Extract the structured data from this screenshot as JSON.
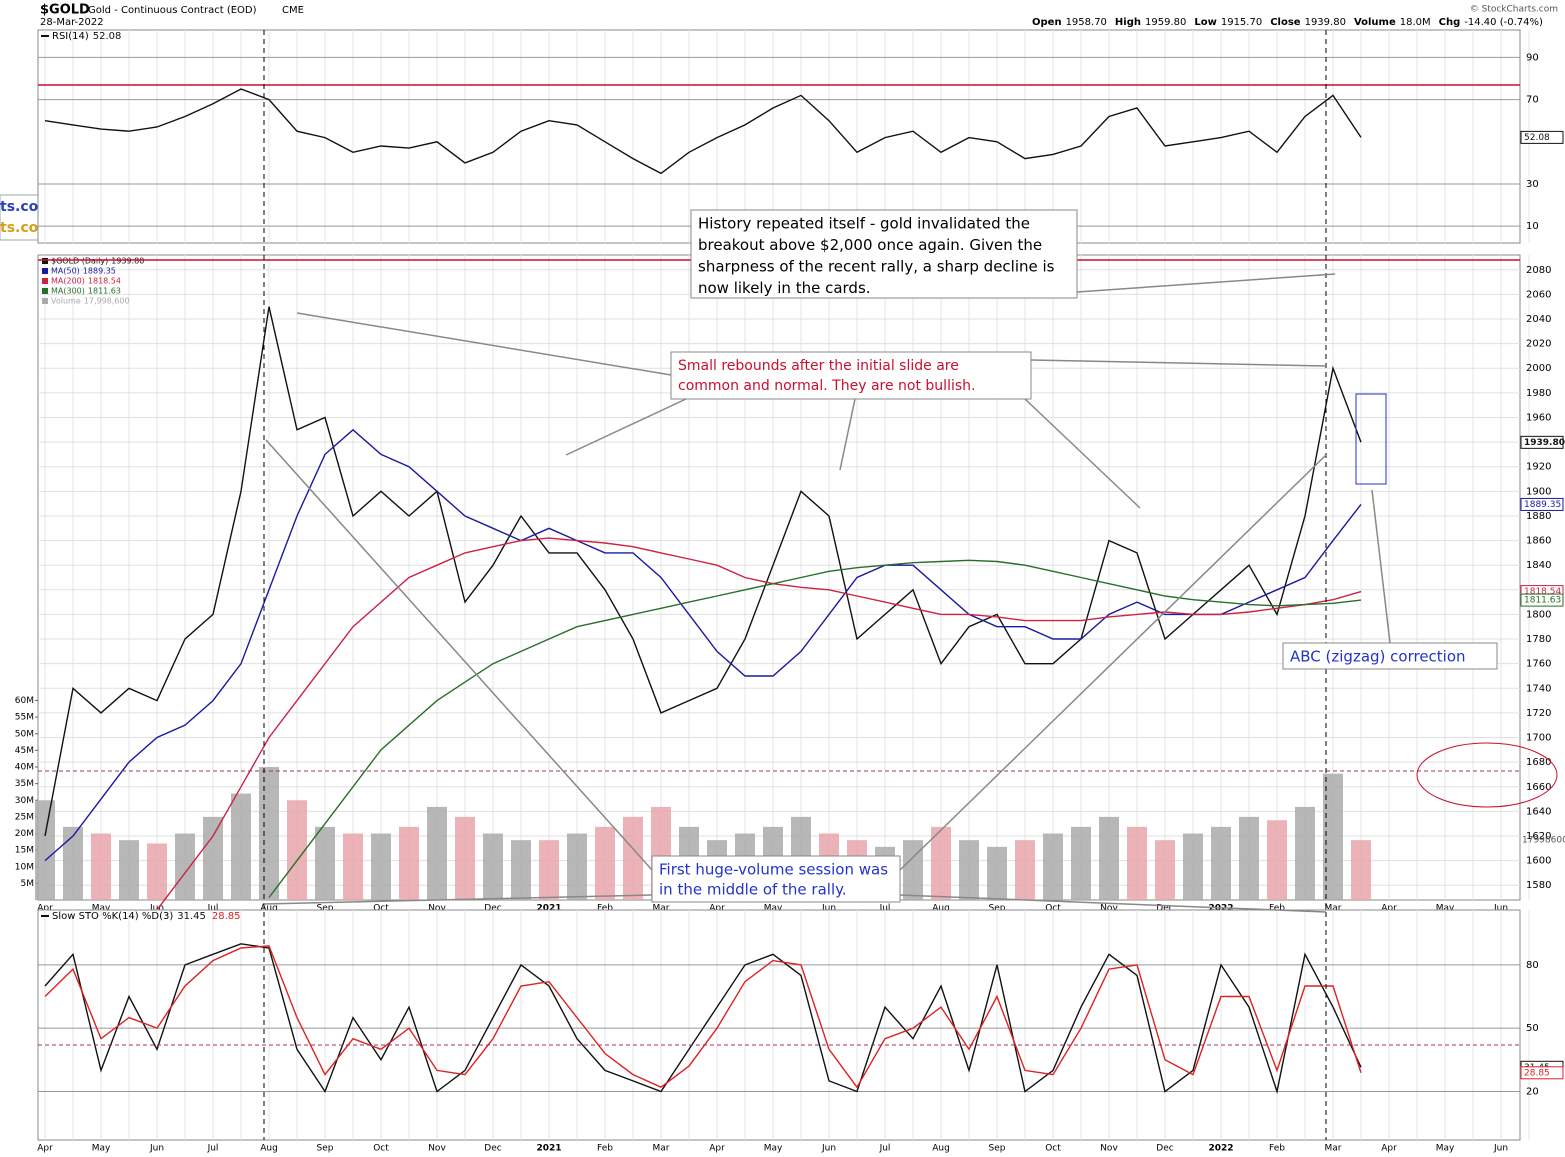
{
  "header": {
    "symbol": "$GOLD",
    "name": "Gold - Continuous Contract (EOD)",
    "exchange": "CME",
    "date": "28-Mar-2022",
    "quote": [
      [
        "Open",
        "1958.70"
      ],
      [
        "High",
        "1959.80"
      ],
      [
        "Low",
        "1915.70"
      ],
      [
        "Close",
        "1939.80"
      ],
      [
        "Volume",
        "18.0M"
      ],
      [
        "Chg",
        "-14.40 (-0.74%)"
      ]
    ],
    "credit": "© StockCharts.com",
    "logo": [
      "ts.com",
      "ts.com"
    ]
  },
  "chart_data": [
    {
      "type": "line",
      "title": "RSI(14)",
      "ylim": [
        2,
        103
      ],
      "yticks": [
        10,
        30,
        70,
        90
      ],
      "series": [
        {
          "name": "RSI(14)",
          "color": "#111111",
          "values": [
            60,
            58,
            56,
            55,
            57,
            62,
            68,
            75,
            70,
            55,
            52,
            45,
            48,
            47,
            50,
            40,
            45,
            55,
            60,
            58,
            50,
            42,
            35,
            45,
            52,
            58,
            66,
            72,
            60,
            45,
            52,
            55,
            45,
            52,
            50,
            42,
            44,
            48,
            62,
            66,
            48,
            50,
            52,
            55,
            45,
            62,
            72,
            52.08,
            null,
            null,
            null,
            null,
            null,
            null
          ]
        }
      ]
    },
    {
      "type": "line",
      "title": "$GOLD (Daily)",
      "categories": [
        "Apr",
        null,
        "May",
        null,
        "Jun",
        null,
        "Jul",
        null,
        "Aug",
        null,
        "Sep",
        null,
        "Oct",
        null,
        "Nov",
        null,
        "Dec",
        null,
        "2021",
        null,
        "Feb",
        null,
        "Mar",
        null,
        "Apr",
        null,
        "May",
        null,
        "Jun",
        null,
        "Jul",
        null,
        "Aug",
        null,
        "Sep",
        null,
        "Oct",
        null,
        "Nov",
        null,
        "Dec",
        null,
        "2022",
        null,
        "Feb",
        null,
        "Mar",
        null,
        "Apr",
        null,
        "May",
        null,
        "Jun",
        null
      ],
      "ylim": [
        1568,
        2092
      ],
      "yticks": [
        1580,
        1600,
        1620,
        1640,
        1660,
        1680,
        1700,
        1720,
        1740,
        1760,
        1780,
        1800,
        1820,
        1840,
        1860,
        1880,
        1900,
        1920,
        1940,
        1960,
        1980,
        2000,
        2020,
        2040,
        2060,
        2080
      ],
      "y2lim": [
        0,
        194000000
      ],
      "y2ticks": [
        {
          "value": 5000000,
          "label": "5M"
        },
        {
          "value": 10000000,
          "label": "10M"
        },
        {
          "value": 15000000,
          "label": "15M"
        },
        {
          "value": 20000000,
          "label": "20M"
        },
        {
          "value": 25000000,
          "label": "25M"
        },
        {
          "value": 30000000,
          "label": "30M"
        },
        {
          "value": 35000000,
          "label": "35M"
        },
        {
          "value": 40000000,
          "label": "40M"
        },
        {
          "value": 45000000,
          "label": "45M"
        },
        {
          "value": 50000000,
          "label": "50M"
        },
        {
          "value": 55000000,
          "label": "55M"
        },
        {
          "value": 60000000,
          "label": "60M"
        }
      ],
      "series": [
        {
          "name": "Volume",
          "type": "bar",
          "axis": "y2",
          "color": "#aaaaaa",
          "down_color": "#e8a4ac",
          "last_label": "17,998,600",
          "values": [
            30000000,
            22000000,
            20000000,
            18000000,
            17000000,
            20000000,
            25000000,
            32000000,
            40000000,
            30000000,
            22000000,
            20000000,
            20000000,
            22000000,
            28000000,
            25000000,
            20000000,
            18000000,
            18000000,
            20000000,
            22000000,
            25000000,
            28000000,
            22000000,
            18000000,
            20000000,
            22000000,
            25000000,
            20000000,
            18000000,
            16000000,
            18000000,
            22000000,
            18000000,
            16000000,
            18000000,
            20000000,
            22000000,
            25000000,
            22000000,
            18000000,
            20000000,
            22000000,
            25000000,
            24000000,
            28000000,
            38000000,
            17998600,
            null,
            null,
            null,
            null,
            null,
            null
          ]
        },
        {
          "name": "$GOLD (Daily)",
          "color": "#111111",
          "last_label": "1939.80",
          "values": [
            1620,
            1740,
            1720,
            1740,
            1730,
            1780,
            1800,
            1900,
            2050,
            1950,
            1960,
            1880,
            1900,
            1880,
            1900,
            1810,
            1840,
            1880,
            1850,
            1850,
            1820,
            1780,
            1720,
            1730,
            1740,
            1780,
            1840,
            1900,
            1880,
            1780,
            1800,
            1820,
            1760,
            1790,
            1800,
            1760,
            1760,
            1780,
            1860,
            1850,
            1780,
            1800,
            1820,
            1840,
            1800,
            1880,
            2000,
            1939.8,
            null,
            null,
            null,
            null,
            null,
            null
          ]
        },
        {
          "name": "MA(50)",
          "color": "#1a1aa0",
          "values": [
            1600,
            1620,
            1650,
            1680,
            1700,
            1710,
            1730,
            1760,
            1820,
            1880,
            1930,
            1950,
            1930,
            1920,
            1900,
            1880,
            1870,
            1860,
            1870,
            1860,
            1850,
            1850,
            1830,
            1800,
            1770,
            1750,
            1750,
            1770,
            1800,
            1830,
            1840,
            1840,
            1820,
            1800,
            1790,
            1790,
            1780,
            1780,
            1800,
            1810,
            1800,
            1800,
            1800,
            1810,
            1820,
            1830,
            1860,
            1889.35,
            null,
            null,
            null,
            null,
            null,
            null
          ]
        },
        {
          "name": "MA(200)",
          "color": "#cc2244",
          "values": [
            null,
            null,
            null,
            null,
            1560,
            1590,
            1620,
            1660,
            1700,
            1730,
            1760,
            1790,
            1810,
            1830,
            1840,
            1850,
            1855,
            1860,
            1862,
            1860,
            1858,
            1855,
            1850,
            1845,
            1840,
            1830,
            1825,
            1822,
            1820,
            1815,
            1810,
            1805,
            1800,
            1800,
            1798,
            1795,
            1795,
            1795,
            1798,
            1800,
            1802,
            1800,
            1800,
            1802,
            1805,
            1808,
            1812,
            1818.54,
            null,
            null,
            null,
            null,
            null,
            null
          ]
        },
        {
          "name": "MA(300)",
          "color": "#2a6e2a",
          "values": [
            null,
            null,
            null,
            null,
            null,
            null,
            null,
            null,
            1570,
            1600,
            1630,
            1660,
            1690,
            1710,
            1730,
            1745,
            1760,
            1770,
            1780,
            1790,
            1795,
            1800,
            1805,
            1810,
            1815,
            1820,
            1825,
            1830,
            1835,
            1838,
            1840,
            1842,
            1843,
            1844,
            1843,
            1840,
            1835,
            1830,
            1825,
            1820,
            1815,
            1812,
            1810,
            1808,
            1807,
            1808,
            1809,
            1811.63,
            null,
            null,
            null,
            null,
            null,
            null
          ]
        }
      ],
      "annotations": [
        {
          "color": "#000000",
          "lines": [
            "History repeated itself - gold invalidated the",
            "breakout above $2,000 once again. Given the",
            "sharpness of the recent rally, a sharp decline is",
            "now likely in the cards."
          ]
        },
        {
          "color": "#c8102e",
          "lines": [
            "Small rebounds after the initial slide are",
            "common and normal. They are not bullish."
          ]
        },
        {
          "color": "#2233cc",
          "lines": [
            "ABC (zigzag) correction"
          ]
        },
        {
          "color": "#2233cc",
          "lines": [
            "First huge-volume session was",
            "in the middle of the rally."
          ]
        }
      ]
    },
    {
      "type": "line",
      "title": "Slow STO %K(14) %D(3)",
      "categories": [
        "Apr",
        null,
        "May",
        null,
        "Jun",
        null,
        "Jul",
        null,
        "Aug",
        null,
        "Sep",
        null,
        "Oct",
        null,
        "Nov",
        null,
        "Dec",
        null,
        "2021",
        null,
        "Feb",
        null,
        "Mar",
        null,
        "Apr",
        null,
        "May",
        null,
        "Jun",
        null,
        "Jul",
        null,
        "Aug",
        null,
        "Sep",
        null,
        "Oct",
        null,
        "Nov",
        null,
        "Dec",
        null,
        "2022",
        null,
        "Feb",
        null,
        "Mar",
        null,
        "Apr",
        null,
        "May",
        null,
        "Jun",
        null
      ],
      "ylim": [
        -3,
        106
      ],
      "yticks": [
        20,
        50,
        80
      ],
      "series": [
        {
          "name": "%K(14)",
          "color": "#111111",
          "values": [
            70,
            85,
            30,
            65,
            40,
            80,
            85,
            90,
            88,
            40,
            20,
            55,
            35,
            60,
            20,
            30,
            55,
            80,
            70,
            45,
            30,
            25,
            20,
            40,
            60,
            80,
            85,
            75,
            25,
            20,
            60,
            45,
            70,
            30,
            80,
            20,
            30,
            60,
            85,
            75,
            20,
            30,
            80,
            60,
            20,
            85,
            60,
            31.45,
            null,
            null,
            null,
            null,
            null,
            null
          ]
        },
        {
          "name": "%D(3)",
          "color": "#dd2222",
          "values": [
            65,
            78,
            45,
            55,
            50,
            70,
            82,
            88,
            89,
            55,
            28,
            45,
            40,
            50,
            30,
            28,
            45,
            70,
            72,
            55,
            38,
            28,
            22,
            32,
            50,
            72,
            82,
            80,
            40,
            22,
            45,
            50,
            60,
            40,
            65,
            30,
            28,
            50,
            78,
            80,
            35,
            28,
            65,
            65,
            30,
            70,
            70,
            28.85,
            null,
            null,
            null,
            null,
            null,
            null
          ]
        }
      ]
    }
  ]
}
